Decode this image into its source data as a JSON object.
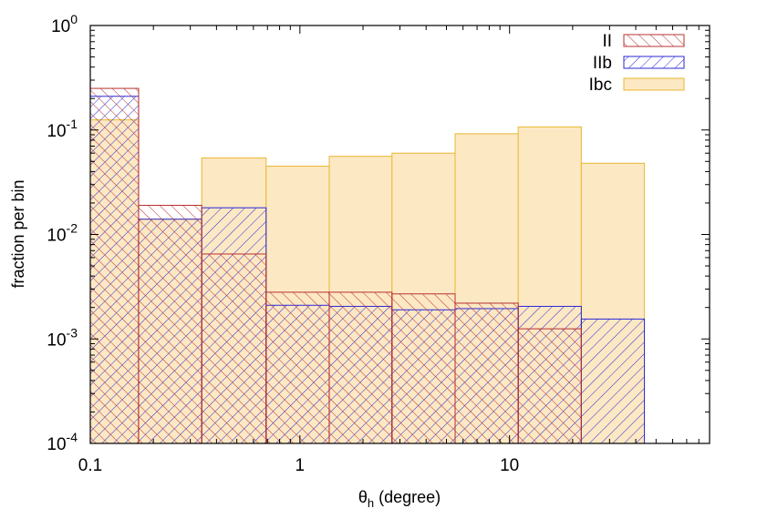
{
  "chart_data": {
    "type": "bar",
    "title": "",
    "xlabel": "θ",
    "xlabel_sub": "h",
    "xlabel_unit": " (degree)",
    "ylabel": "fraction per bin",
    "x_scale": "log",
    "y_scale": "log",
    "xlim": [
      0.1,
      90
    ],
    "ylim": [
      0.0001,
      1
    ],
    "bin_edges": [
      0.1,
      0.17,
      0.34,
      0.69,
      1.38,
      2.75,
      5.5,
      11.0,
      22.0,
      44.0
    ],
    "x_ticks": [
      {
        "value": 0.1,
        "label": "0.1"
      },
      {
        "value": 1,
        "label": "1"
      },
      {
        "value": 10,
        "label": "10"
      }
    ],
    "y_ticks": [
      {
        "value": 1,
        "base": "10",
        "exp": "0"
      },
      {
        "value": 0.1,
        "base": "10",
        "exp": "-1"
      },
      {
        "value": 0.01,
        "base": "10",
        "exp": "-2"
      },
      {
        "value": 0.001,
        "base": "10",
        "exp": "-3"
      },
      {
        "value": 0.0001,
        "base": "10",
        "exp": "-4"
      }
    ],
    "legend_position": "top-right",
    "grid": false,
    "series": [
      {
        "name": "Ibc",
        "key": "ibc",
        "style": "solid",
        "stroke": "#e8b830",
        "fill": "#fde8c4",
        "values": [
          0.125,
          0.014,
          0.054,
          0.045,
          0.056,
          0.06,
          0.092,
          0.107,
          0.048
        ]
      },
      {
        "name": "IIb",
        "key": "iib",
        "style": "hatch-forward",
        "stroke": "#2a2ad8",
        "values": [
          0.21,
          0.014,
          0.018,
          0.0021,
          0.00205,
          0.0019,
          0.00195,
          0.00205,
          0.00155
        ]
      },
      {
        "name": "II",
        "key": "ii",
        "style": "hatch-back",
        "stroke": "#b83030",
        "values": [
          0.25,
          0.019,
          0.0065,
          0.0028,
          0.0028,
          0.0027,
          0.0022,
          0.00125,
          null
        ]
      }
    ],
    "legend_order": [
      "ii",
      "iib",
      "ibc"
    ]
  }
}
